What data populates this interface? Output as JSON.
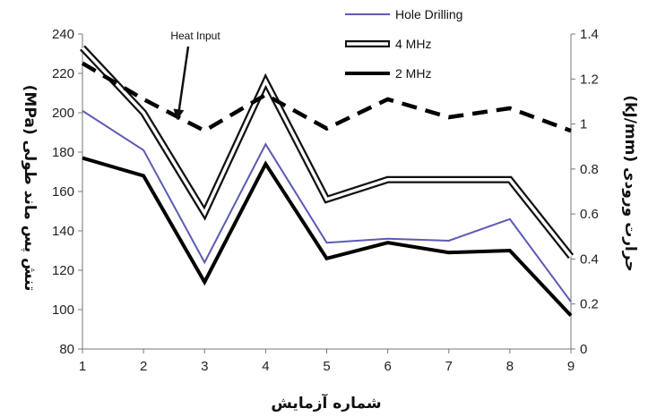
{
  "chart_data": {
    "type": "line",
    "x": [
      1,
      2,
      3,
      4,
      5,
      6,
      7,
      8,
      9
    ],
    "xlabel": "شماره آزمایش",
    "ylabel": "تنش پس ماند طولی (MPa)",
    "ylabel_right": "حرارت ورودی (kJ/mm)",
    "ylim": [
      80,
      240
    ],
    "ylim_right": [
      0,
      1.4
    ],
    "yticks": [
      80,
      100,
      120,
      140,
      160,
      180,
      200,
      220,
      240
    ],
    "yticks_right": [
      "0",
      "0.2",
      "0.4",
      "0.6",
      "0.8",
      "1",
      "1.2",
      "1.4"
    ],
    "grid": false,
    "legend_position": "top-right",
    "series": [
      {
        "name": "Hole Drilling",
        "axis": "left",
        "style": "thin",
        "color": "#5b5ab5",
        "values": [
          201,
          181,
          124,
          184,
          134,
          136,
          135,
          146,
          104
        ]
      },
      {
        "name": "4 MHz",
        "axis": "left",
        "style": "double",
        "color": "#111111",
        "values": [
          233,
          200,
          149,
          216,
          156,
          166,
          166,
          166,
          127
        ]
      },
      {
        "name": "2 MHz",
        "axis": "left",
        "style": "thick",
        "color": "#000000",
        "values": [
          177,
          168,
          114,
          174,
          126,
          134,
          129,
          130,
          97
        ]
      },
      {
        "name": "",
        "axis": "right",
        "style": "dashed",
        "color": "#000000",
        "values": [
          1.27,
          1.11,
          0.97,
          1.13,
          0.98,
          1.11,
          1.03,
          1.07,
          0.97
        ]
      }
    ],
    "annotations": [
      {
        "text": "Heat Input",
        "target_series": 3,
        "target_x": 2.55
      }
    ]
  }
}
